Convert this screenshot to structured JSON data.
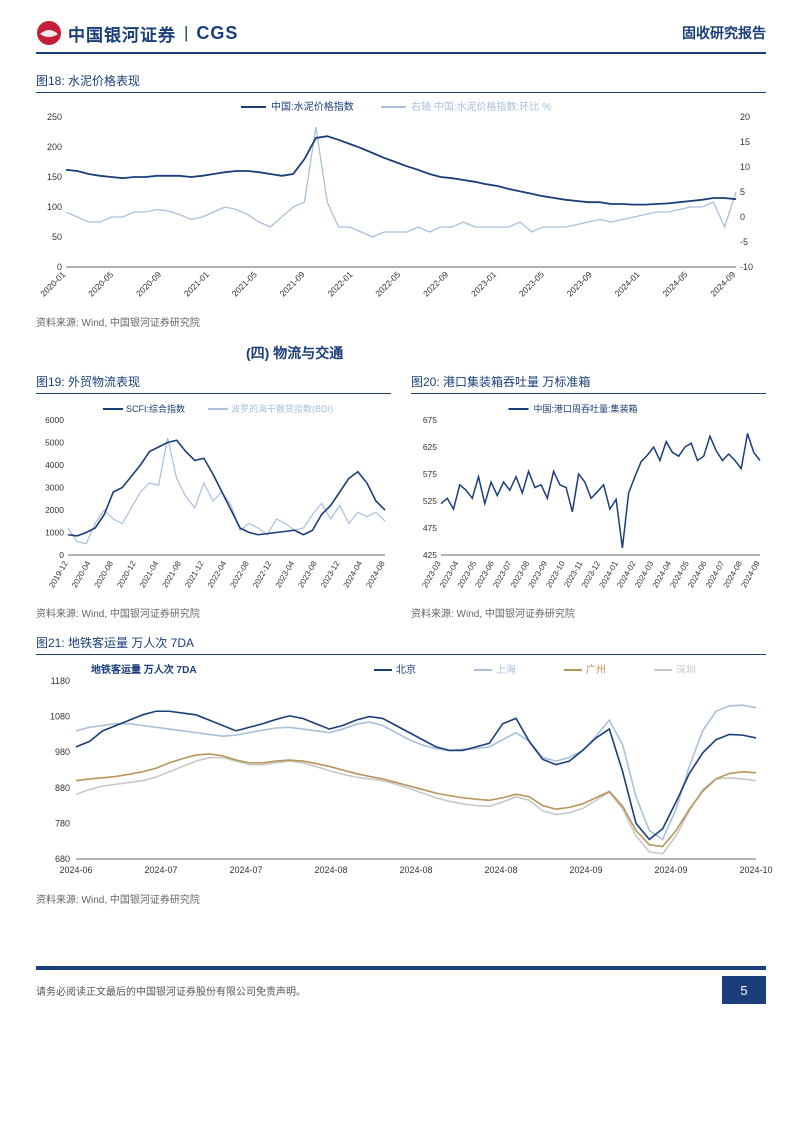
{
  "header": {
    "brand_cn": "中国银河证券",
    "brand_en": "CGS",
    "report_type": "固收研究报告"
  },
  "section_title": "(四) 物流与交通",
  "footer": {
    "disclaimer": "请务必阅读正文最后的中国银河证券股份有限公司免责声明。",
    "page_num": "5"
  },
  "colors": {
    "primary": "#1a3e7a",
    "secondary": "#a8c0dc",
    "gold": "#b8945a",
    "grey": "#c8c8c8",
    "axis": "#333333",
    "grid": "#e0e0e0",
    "bg": "#ffffff"
  },
  "fig18": {
    "title": "图18: 水泥价格表现",
    "source": "资料来源: Wind, 中国银河证券研究院",
    "legend": [
      "中国:水泥价格指数",
      "右轴 中国:水泥价格指数:环比 %"
    ],
    "x_ticks": [
      "2020-01",
      "2020-05",
      "2020-09",
      "2021-01",
      "2021-05",
      "2021-09",
      "2022-01",
      "2022-05",
      "2022-09",
      "2023-01",
      "2023-05",
      "2023-09",
      "2024-01",
      "2024-05",
      "2024-09"
    ],
    "y_left": {
      "min": 0,
      "max": 250,
      "step": 50
    },
    "y_right": {
      "min": -10,
      "max": 20,
      "step": 5
    },
    "series1_color": "#1a3e7a",
    "series2_color": "#a8c0dc",
    "series1": [
      162,
      160,
      155,
      152,
      150,
      148,
      150,
      150,
      152,
      152,
      152,
      150,
      152,
      155,
      158,
      160,
      160,
      158,
      155,
      152,
      155,
      180,
      215,
      218,
      212,
      205,
      198,
      190,
      182,
      175,
      168,
      162,
      155,
      150,
      148,
      145,
      142,
      138,
      135,
      130,
      126,
      122,
      118,
      115,
      112,
      110,
      108,
      108,
      105,
      105,
      104,
      104,
      105,
      106,
      108,
      110,
      112,
      115,
      115,
      113
    ],
    "series2": [
      1,
      0,
      -1,
      -1,
      0,
      0,
      1,
      1,
      1.5,
      1.2,
      0.5,
      -0.5,
      0,
      1,
      2,
      1.5,
      0.5,
      -1,
      -2,
      0,
      2,
      3,
      18,
      3,
      -2,
      -2,
      -3,
      -4,
      -3,
      -3,
      -3,
      -2,
      -3,
      -2,
      -2,
      -1,
      -2,
      -2,
      -2,
      -2,
      -1,
      -3,
      -2,
      -2,
      -2,
      -1.5,
      -1,
      -0.5,
      -1,
      -0.5,
      0,
      0.5,
      1,
      1,
      1.5,
      2,
      2,
      3,
      -2,
      5
    ]
  },
  "fig19": {
    "title": "图19: 外贸物流表现",
    "source": "资料来源: Wind, 中国银河证券研究院",
    "legend": [
      "SCFI:综合指数",
      "波罗的海干散货指数(BDI)"
    ],
    "x_ticks": [
      "2019-12",
      "2020-04",
      "2020-08",
      "2020-12",
      "2021-04",
      "2021-08",
      "2021-12",
      "2022-04",
      "2022-08",
      "2022-12",
      "2023-04",
      "2023-08",
      "2023-12",
      "2024-04",
      "2024-08"
    ],
    "y": {
      "min": 0,
      "max": 6000,
      "step": 1000
    },
    "series1_color": "#1a3e7a",
    "series2_color": "#a8c0dc",
    "series1": [
      900,
      850,
      1000,
      1200,
      1800,
      2800,
      3000,
      3500,
      4000,
      4600,
      4800,
      5000,
      5100,
      4600,
      4200,
      4300,
      3600,
      2800,
      2000,
      1200,
      1000,
      900,
      950,
      1000,
      1050,
      1100,
      900,
      1100,
      1800,
      2200,
      2800,
      3400,
      3700,
      3200,
      2400,
      2000
    ],
    "series2": [
      1200,
      600,
      500,
      1400,
      2000,
      1600,
      1400,
      2100,
      2800,
      3200,
      3100,
      5200,
      3400,
      2600,
      2100,
      3200,
      2400,
      2800,
      2200,
      1100,
      1400,
      1200,
      900,
      1600,
      1400,
      1100,
      1200,
      1800,
      2300,
      1600,
      2200,
      1400,
      1900,
      1700,
      1900,
      1500
    ]
  },
  "fig20": {
    "title": "图20: 港口集装箱吞吐量 万标准箱",
    "source": "资料来源: Wind, 中国银河证券研究院",
    "legend": [
      "中国:港口周吞吐量:集装箱"
    ],
    "x_ticks": [
      "2023-03",
      "2023-04",
      "2023-05",
      "2023-06",
      "2023-07",
      "2023-08",
      "2023-09",
      "2023-10",
      "2023-11",
      "2023-12",
      "2024-01",
      "2024-02",
      "2024-03",
      "2024-04",
      "2024-05",
      "2024-06",
      "2024-07",
      "2024-08",
      "2024-09"
    ],
    "y": {
      "min": 425,
      "max": 675,
      "step": 50
    },
    "series1_color": "#1a3e7a",
    "series1": [
      520,
      530,
      510,
      555,
      545,
      530,
      570,
      520,
      560,
      535,
      560,
      545,
      570,
      540,
      580,
      550,
      555,
      530,
      580,
      555,
      550,
      505,
      575,
      560,
      530,
      542,
      555,
      510,
      528,
      438,
      540,
      570,
      598,
      610,
      625,
      600,
      635,
      615,
      608,
      625,
      632,
      600,
      608,
      645,
      618,
      600,
      612,
      600,
      585,
      650,
      615,
      600
    ]
  },
  "fig21": {
    "title": "图21: 地铁客运量 万人次 7DA",
    "source": "资料来源: Wind, 中国银河证券研究院",
    "chart_label": "地铁客运量 万人次 7DA",
    "legend": [
      "北京",
      "上海",
      "广州",
      "深圳"
    ],
    "x_ticks": [
      "2024-06",
      "2024-07",
      "2024-07",
      "2024-08",
      "2024-08",
      "2024-08",
      "2024-09",
      "2024-09",
      "2024-10"
    ],
    "y": {
      "min": 680,
      "max": 1180,
      "step": 100
    },
    "colors": [
      "#1a3e7a",
      "#a8c0dc",
      "#b8945a",
      "#c8c8c8"
    ],
    "series": {
      "beijing": [
        995,
        1010,
        1040,
        1055,
        1070,
        1085,
        1095,
        1095,
        1090,
        1085,
        1070,
        1055,
        1040,
        1050,
        1060,
        1072,
        1082,
        1075,
        1060,
        1045,
        1055,
        1070,
        1080,
        1075,
        1055,
        1035,
        1015,
        995,
        985,
        985,
        995,
        1005,
        1060,
        1075,
        1010,
        960,
        945,
        955,
        985,
        1020,
        1045,
        925,
        780,
        735,
        765,
        840,
        920,
        978,
        1015,
        1030,
        1028,
        1020
      ],
      "shanghai": [
        1040,
        1050,
        1055,
        1060,
        1060,
        1055,
        1050,
        1045,
        1040,
        1035,
        1030,
        1025,
        1028,
        1035,
        1042,
        1048,
        1050,
        1045,
        1040,
        1035,
        1045,
        1058,
        1065,
        1055,
        1035,
        1015,
        1000,
        990,
        985,
        988,
        990,
        995,
        1015,
        1035,
        1010,
        965,
        955,
        965,
        985,
        1025,
        1070,
        1000,
        855,
        760,
        735,
        820,
        940,
        1040,
        1095,
        1110,
        1112,
        1105
      ],
      "guangzhou": [
        900,
        905,
        908,
        912,
        918,
        925,
        935,
        950,
        962,
        972,
        975,
        970,
        958,
        950,
        950,
        955,
        958,
        955,
        948,
        940,
        930,
        920,
        912,
        905,
        895,
        885,
        875,
        865,
        858,
        852,
        848,
        845,
        852,
        862,
        855,
        830,
        820,
        825,
        835,
        852,
        870,
        828,
        760,
        720,
        715,
        760,
        820,
        870,
        905,
        920,
        925,
        922
      ],
      "shenzhen": [
        862,
        875,
        885,
        890,
        895,
        900,
        910,
        925,
        940,
        955,
        965,
        965,
        955,
        945,
        945,
        950,
        955,
        950,
        940,
        928,
        918,
        910,
        905,
        900,
        890,
        878,
        865,
        852,
        842,
        835,
        830,
        828,
        840,
        855,
        845,
        815,
        805,
        810,
        822,
        845,
        868,
        820,
        745,
        700,
        695,
        745,
        815,
        875,
        905,
        908,
        905,
        900
      ]
    }
  }
}
